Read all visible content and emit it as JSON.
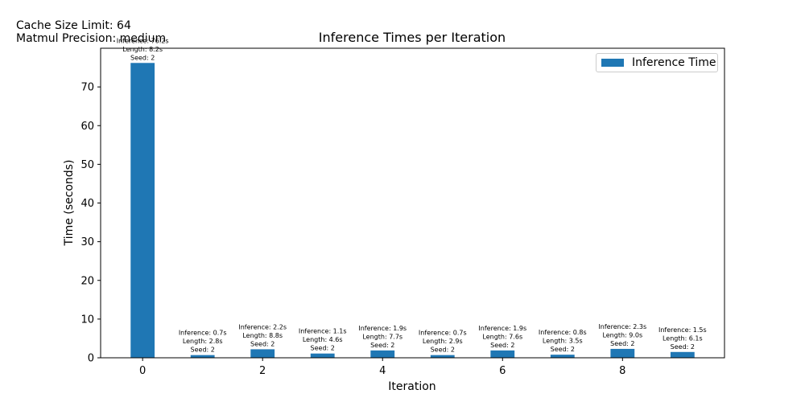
{
  "notes": {
    "cache_size": "Cache Size Limit: 64",
    "matmul_precision": "Matmul Precision: medium"
  },
  "colors": {
    "bar": "#1f77b4",
    "axis": "#000000"
  },
  "chart_data": {
    "type": "bar",
    "title": "Inference Times per Iteration",
    "xlabel": "Iteration",
    "ylabel": "Time (seconds)",
    "x": [
      0,
      1,
      2,
      3,
      4,
      5,
      6,
      7,
      8,
      9
    ],
    "values": [
      76.2,
      0.7,
      2.2,
      1.1,
      1.9,
      0.7,
      1.9,
      0.8,
      2.3,
      1.5
    ],
    "annotations": [
      [
        "Inference: 76.2s",
        "Length: 8.2s",
        "Seed: 2"
      ],
      [
        "Inference: 0.7s",
        "Length: 2.8s",
        "Seed: 2"
      ],
      [
        "Inference: 2.2s",
        "Length: 8.8s",
        "Seed: 2"
      ],
      [
        "Inference: 1.1s",
        "Length: 4.6s",
        "Seed: 2"
      ],
      [
        "Inference: 1.9s",
        "Length: 7.7s",
        "Seed: 2"
      ],
      [
        "Inference: 0.7s",
        "Length: 2.9s",
        "Seed: 2"
      ],
      [
        "Inference: 1.9s",
        "Length: 7.6s",
        "Seed: 2"
      ],
      [
        "Inference: 0.8s",
        "Length: 3.5s",
        "Seed: 2"
      ],
      [
        "Inference: 2.3s",
        "Length: 9.0s",
        "Seed: 2"
      ],
      [
        "Inference: 1.5s",
        "Length: 6.1s",
        "Seed: 2"
      ]
    ],
    "xticks": [
      0,
      2,
      4,
      6,
      8
    ],
    "yticks": [
      0,
      10,
      20,
      30,
      40,
      50,
      60,
      70
    ],
    "xlim": [
      -0.7,
      9.7
    ],
    "ylim": [
      0,
      80
    ],
    "grid": false,
    "legend": {
      "label": "Inference Time",
      "placement": "top-right"
    }
  }
}
